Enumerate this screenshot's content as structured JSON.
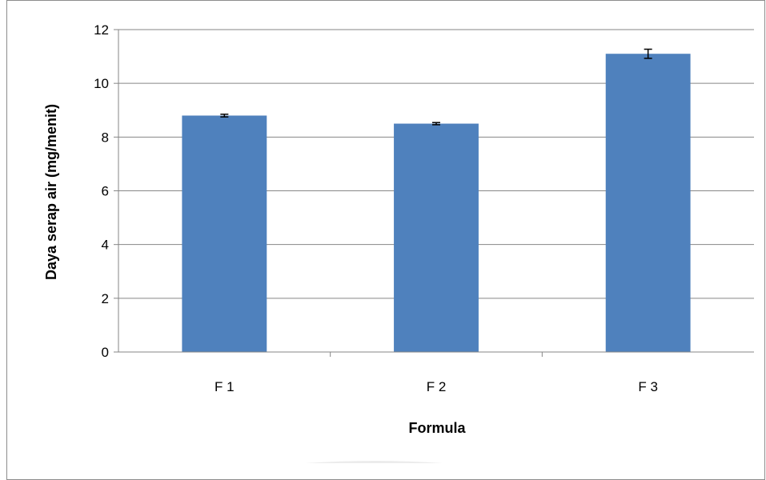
{
  "chart_data": {
    "type": "bar",
    "title": "",
    "xlabel": "Formula",
    "ylabel": "Daya serap air (mg/menit)",
    "categories": [
      "F 1",
      "F 2",
      "F 3"
    ],
    "values": [
      8.8,
      8.5,
      11.1
    ],
    "error": [
      0.05,
      0.04,
      0.17
    ],
    "ylim": [
      0,
      12
    ],
    "yticks": [
      0,
      2,
      4,
      6,
      8,
      10,
      12
    ],
    "ytick_labels": [
      "0",
      "2",
      "4",
      "6",
      "8",
      "10",
      "12"
    ],
    "grid": true,
    "legend": "none",
    "bar_color": "#4f81bd",
    "grid_color": "#868686",
    "errorbar_color": "#000000"
  }
}
